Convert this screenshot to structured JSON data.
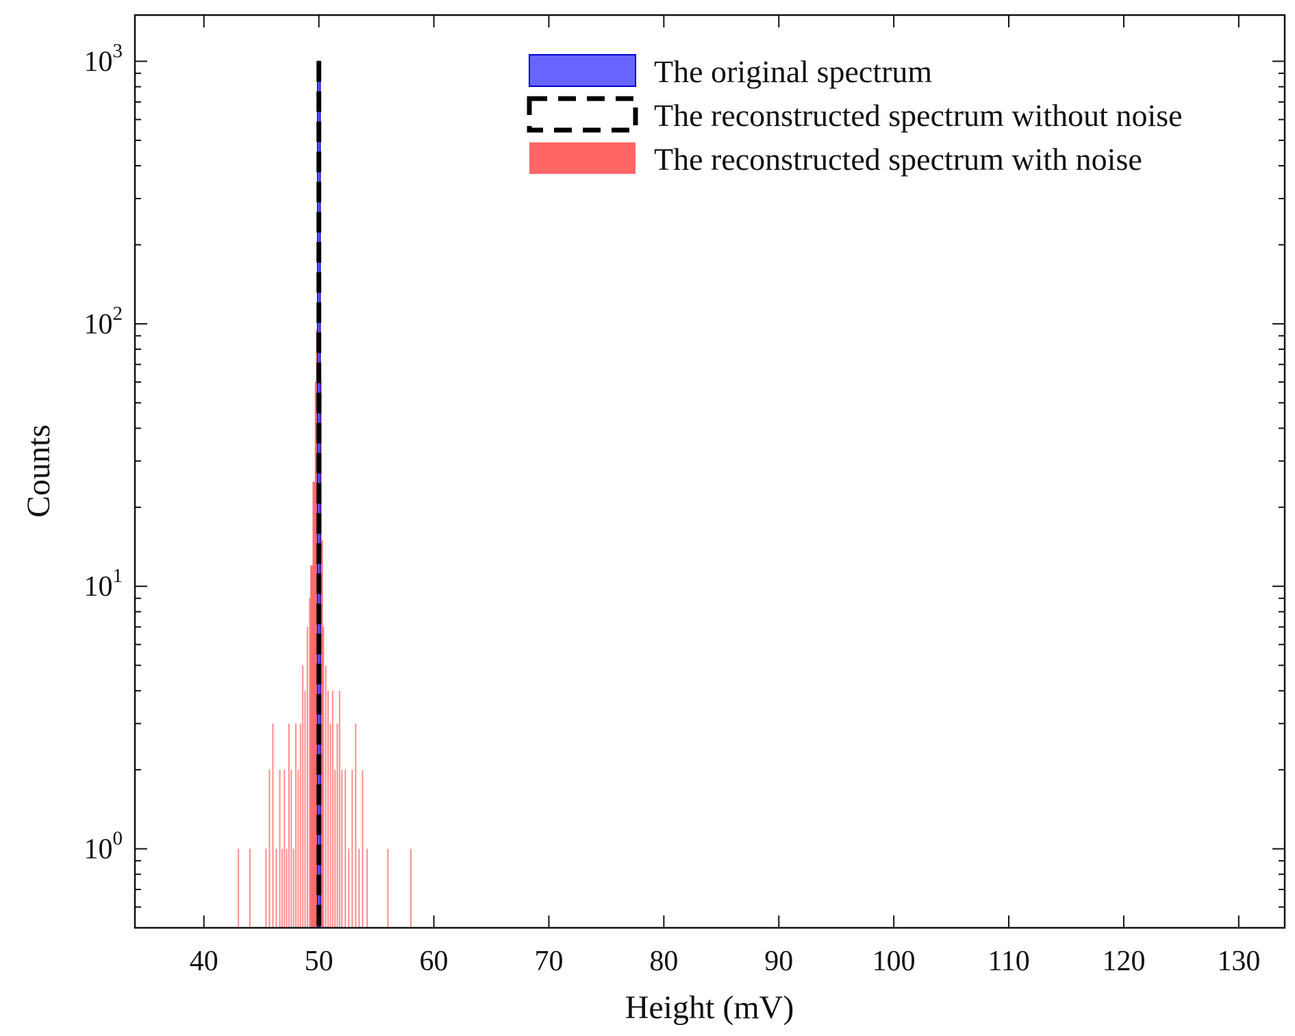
{
  "chart_data": {
    "type": "bar",
    "title": "",
    "xlabel": "Height (mV)",
    "ylabel": "Counts",
    "yscale": "log",
    "xlim": [
      34,
      134
    ],
    "ylim": [
      0.5,
      1500
    ],
    "xticks": [
      40,
      50,
      60,
      70,
      80,
      90,
      100,
      110,
      120,
      130
    ],
    "xtick_labels": [
      "40",
      "50",
      "60",
      "70",
      "80",
      "90",
      "100",
      "110",
      "120",
      "130"
    ],
    "yticks": [
      1,
      10,
      100,
      1000
    ],
    "ytick_labels": [
      {
        "base": "10",
        "exp": "0"
      },
      {
        "base": "10",
        "exp": "1"
      },
      {
        "base": "10",
        "exp": "2"
      },
      {
        "base": "10",
        "exp": "3"
      }
    ],
    "grid": false,
    "legend_position": "top-right",
    "legend": [
      "The original spectrum",
      "The reconstructed spectrum without noise",
      "The reconstructed spectrum with noise"
    ],
    "colors": {
      "original_fill": "#6666ff",
      "original_edge": "#0000cc",
      "noise_fill": "#ff6666",
      "without_noise_line": "#000000"
    },
    "series": [
      {
        "name": "The original spectrum",
        "style": "filled-bar",
        "x": [
          50.0
        ],
        "values": [
          1000
        ]
      },
      {
        "name": "The reconstructed spectrum without noise",
        "style": "dashed-outline",
        "x": [
          50.0
        ],
        "values": [
          1000
        ]
      },
      {
        "name": "The reconstructed spectrum with noise",
        "style": "filled-bar",
        "x": [
          43.0,
          44.0,
          45.4,
          45.7,
          46.0,
          46.3,
          46.6,
          46.8,
          47.0,
          47.2,
          47.4,
          47.6,
          47.8,
          48.0,
          48.2,
          48.4,
          48.6,
          48.8,
          49.0,
          49.2,
          49.4,
          49.6,
          49.8,
          49.9,
          50.0,
          50.1,
          50.2,
          50.4,
          50.6,
          50.8,
          51.0,
          51.2,
          51.4,
          51.6,
          51.8,
          52.0,
          52.3,
          52.6,
          52.9,
          53.2,
          53.5,
          53.8,
          54.2,
          56.0,
          58.0
        ],
        "values": [
          1,
          1,
          1,
          2,
          3,
          1,
          2,
          1,
          2,
          1,
          3,
          2,
          1,
          3,
          2,
          3,
          5,
          4,
          7,
          9,
          12,
          25,
          60,
          95,
          100,
          60,
          15,
          7,
          5,
          4,
          3,
          4,
          2,
          3,
          4,
          2,
          2,
          1,
          2,
          3,
          1,
          2,
          1,
          1,
          1
        ]
      }
    ]
  }
}
